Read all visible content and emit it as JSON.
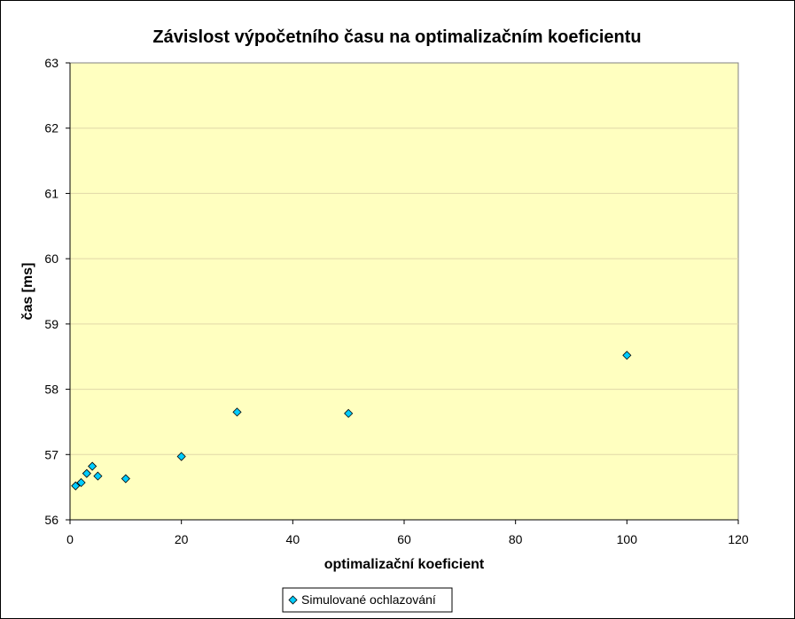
{
  "chart_data": {
    "type": "scatter",
    "title": "Závislost výpočetního času na optimalizačním koeficientu",
    "xlabel": "optimalizační koeficient",
    "ylabel": "čas [ms]",
    "xlim": [
      0,
      120
    ],
    "ylim": [
      56,
      63
    ],
    "xticks": [
      0,
      20,
      40,
      60,
      80,
      100,
      120
    ],
    "yticks": [
      56,
      57,
      58,
      59,
      60,
      61,
      62,
      63
    ],
    "grid": "horizontal",
    "legend_position": "bottom",
    "plot_background": "#FFFFC0",
    "series": [
      {
        "name": "Simulované ochlazování",
        "marker": "diamond",
        "color": "#00CCFF",
        "x": [
          1,
          2,
          3,
          4,
          5,
          10,
          20,
          30,
          50,
          100
        ],
        "y": [
          56.52,
          56.57,
          56.71,
          56.82,
          56.67,
          56.63,
          56.97,
          57.65,
          57.63,
          58.52
        ]
      }
    ]
  }
}
